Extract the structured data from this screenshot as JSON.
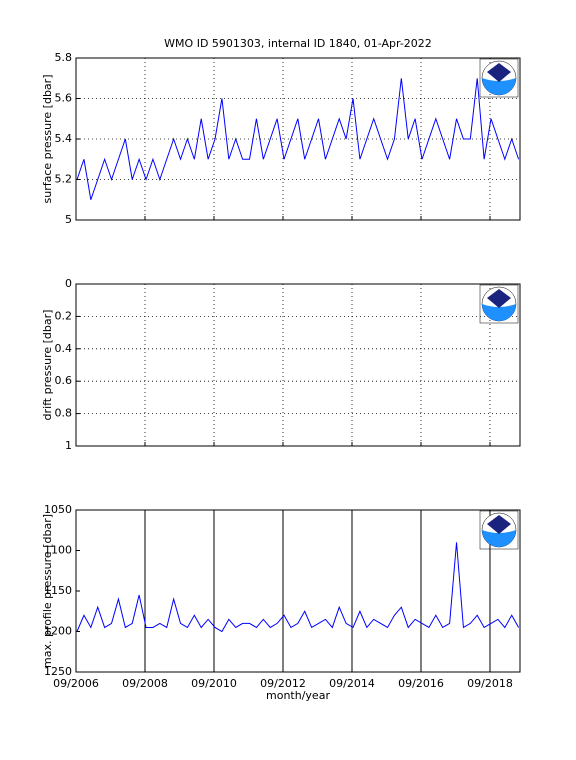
{
  "chart_data": [
    {
      "type": "line",
      "title": "WMO ID 5901303, internal ID 1840, 01-Apr-2022",
      "ylabel": "surface pressure [dbar]",
      "x": [
        2006.7,
        2006.9,
        2007.1,
        2007.3,
        2007.5,
        2007.7,
        2007.9,
        2008.1,
        2008.3,
        2008.5,
        2008.7,
        2008.9,
        2009.1,
        2009.3,
        2009.5,
        2009.7,
        2009.9,
        2010.1,
        2010.3,
        2010.5,
        2010.7,
        2010.9,
        2011.1,
        2011.3,
        2011.5,
        2011.7,
        2011.9,
        2012.1,
        2012.3,
        2012.5,
        2012.7,
        2012.9,
        2013.1,
        2013.3,
        2013.5,
        2013.7,
        2013.9,
        2014.1,
        2014.3,
        2014.5,
        2014.7,
        2014.9,
        2015.1,
        2015.3,
        2015.5,
        2015.7,
        2015.9,
        2016.1,
        2016.3,
        2016.5,
        2016.7,
        2016.9,
        2017.1,
        2017.3,
        2017.5,
        2017.7,
        2017.9,
        2018.1,
        2018.3,
        2018.5,
        2018.7,
        2018.9,
        2019.1,
        2019.3,
        2019.5
      ],
      "series": [
        {
          "color": "#0000ff",
          "values": [
            5.2,
            5.3,
            5.1,
            5.2,
            5.3,
            5.2,
            5.3,
            5.4,
            5.2,
            5.3,
            5.2,
            5.3,
            5.2,
            5.3,
            5.4,
            5.3,
            5.4,
            5.3,
            5.5,
            5.3,
            5.4,
            5.6,
            5.3,
            5.4,
            5.3,
            5.3,
            5.5,
            5.3,
            5.4,
            5.5,
            5.3,
            5.4,
            5.5,
            5.3,
            5.4,
            5.5,
            5.3,
            5.4,
            5.5,
            5.4,
            5.6,
            5.3,
            5.4,
            5.5,
            5.4,
            5.3,
            5.4,
            5.7,
            5.4,
            5.5,
            5.3,
            5.4,
            5.5,
            5.4,
            5.3,
            5.5,
            5.4,
            5.4,
            5.7,
            5.3,
            5.5,
            5.4,
            5.3,
            5.4,
            5.3
          ]
        }
      ],
      "xlim": [
        2006.67,
        2019.54
      ],
      "xticks": [
        2006.67,
        2008.67,
        2010.67,
        2012.67,
        2014.67,
        2016.67,
        2018.67
      ],
      "ylim": [
        5,
        5.8
      ],
      "yticks": [
        5,
        5.2,
        5.4,
        5.6,
        5.8
      ],
      "reverse": false,
      "grid": true,
      "grid_style": "dotted"
    },
    {
      "type": "line",
      "ylabel": "drift pressure [dbar]",
      "xlim": [
        2006.67,
        2019.54
      ],
      "xticks": [
        2006.67,
        2008.67,
        2010.67,
        2012.67,
        2014.67,
        2016.67,
        2018.67
      ],
      "ylim": [
        0,
        1
      ],
      "yticks": [
        0,
        0.2,
        0.4,
        0.6,
        0.8,
        1
      ],
      "reverse": true,
      "grid": true,
      "grid_style": "dotted"
    },
    {
      "type": "line",
      "ylabel": "max. profile pressure [dbar]",
      "xlabel": "month/year",
      "x": [
        2006.7,
        2006.9,
        2007.1,
        2007.3,
        2007.5,
        2007.7,
        2007.9,
        2008.1,
        2008.3,
        2008.5,
        2008.7,
        2008.9,
        2009.1,
        2009.3,
        2009.5,
        2009.7,
        2009.9,
        2010.1,
        2010.3,
        2010.5,
        2010.7,
        2010.9,
        2011.1,
        2011.3,
        2011.5,
        2011.7,
        2011.9,
        2012.1,
        2012.3,
        2012.5,
        2012.7,
        2012.9,
        2013.1,
        2013.3,
        2013.5,
        2013.7,
        2013.9,
        2014.1,
        2014.3,
        2014.5,
        2014.7,
        2014.9,
        2015.1,
        2015.3,
        2015.5,
        2015.7,
        2015.9,
        2016.1,
        2016.3,
        2016.5,
        2016.7,
        2016.9,
        2017.1,
        2017.3,
        2017.5,
        2017.7,
        2017.9,
        2018.1,
        2018.3,
        2018.5,
        2018.7,
        2018.9,
        2019.1,
        2019.3,
        2019.5
      ],
      "series": [
        {
          "color": "#0000ff",
          "values": [
            1200,
            1180,
            1195,
            1170,
            1195,
            1190,
            1160,
            1195,
            1190,
            1155,
            1195,
            1195,
            1190,
            1195,
            1160,
            1190,
            1195,
            1180,
            1195,
            1185,
            1195,
            1200,
            1185,
            1195,
            1190,
            1190,
            1195,
            1185,
            1195,
            1190,
            1180,
            1195,
            1190,
            1175,
            1195,
            1190,
            1185,
            1195,
            1170,
            1190,
            1195,
            1175,
            1195,
            1185,
            1190,
            1195,
            1180,
            1170,
            1195,
            1185,
            1190,
            1195,
            1180,
            1195,
            1190,
            1090,
            1195,
            1190,
            1180,
            1195,
            1190,
            1185,
            1195,
            1180,
            1195
          ]
        }
      ],
      "xlim": [
        2006.67,
        2019.54
      ],
      "xticks": [
        {
          "value": 2006.67,
          "label": "09/2006"
        },
        {
          "value": 2008.67,
          "label": "09/2008"
        },
        {
          "value": 2010.67,
          "label": "09/2010"
        },
        {
          "value": 2012.67,
          "label": "09/2012"
        },
        {
          "value": 2014.67,
          "label": "09/2014"
        },
        {
          "value": 2016.67,
          "label": "09/2016"
        },
        {
          "value": 2018.67,
          "label": "09/2018"
        }
      ],
      "ylim": [
        1050,
        1250
      ],
      "yticks": [
        1050,
        1100,
        1150,
        1200,
        1250
      ],
      "reverse": true,
      "grid": true,
      "grid_style": "solid"
    }
  ]
}
